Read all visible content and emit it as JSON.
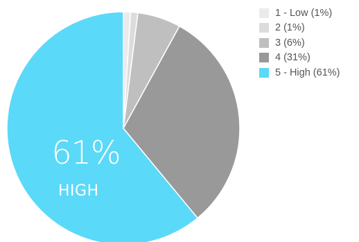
{
  "chart_data": {
    "type": "pie",
    "slices": [
      {
        "label": "1 - Low (1%)",
        "value": 1,
        "color": "#ebebeb"
      },
      {
        "label": "2 (1%)",
        "value": 1,
        "color": "#dcdcdc"
      },
      {
        "label": "3 (6%)",
        "value": 6,
        "color": "#bfbfbf"
      },
      {
        "label": "4 (31%)",
        "value": 31,
        "color": "#999999"
      },
      {
        "label": "5 - High (61%)",
        "value": 61,
        "color": "#5bd9f8"
      }
    ],
    "legend_position": "top-right",
    "callout": {
      "value": "61%",
      "label": "HIGH"
    }
  }
}
